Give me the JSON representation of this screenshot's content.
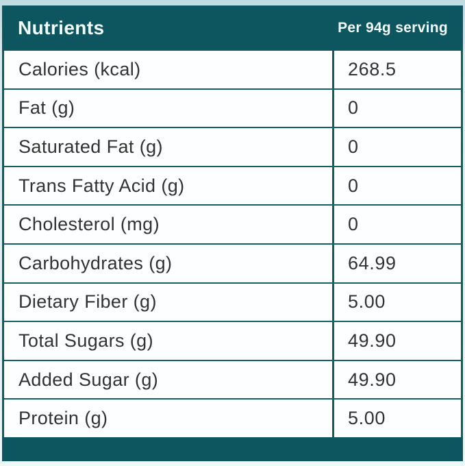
{
  "header": {
    "title": "Nutrients",
    "serving_label": "Per 94g serving"
  },
  "rows": [
    {
      "label": "Calories (kcal)",
      "value": "268.5"
    },
    {
      "label": "Fat (g)",
      "value": "0"
    },
    {
      "label": "Saturated Fat (g)",
      "value": "0"
    },
    {
      "label": "Trans Fatty Acid (g)",
      "value": "0"
    },
    {
      "label": "Cholesterol (mg)",
      "value": "0"
    },
    {
      "label": "Carbohydrates (g)",
      "value": "64.99"
    },
    {
      "label": "Dietary Fiber (g)",
      "value": "5.00"
    },
    {
      "label": "Total Sugars (g)",
      "value": "49.90"
    },
    {
      "label": "Added Sugar (g)",
      "value": "49.90"
    },
    {
      "label": "Protein (g)",
      "value": "5.00"
    }
  ],
  "colors": {
    "teal_band": "#0d565f",
    "border_teal": "#14616a",
    "cell_background": "#fdfeff",
    "text": "#323232",
    "header_text": "#f2fafa",
    "page_background": "#dcedf1"
  }
}
